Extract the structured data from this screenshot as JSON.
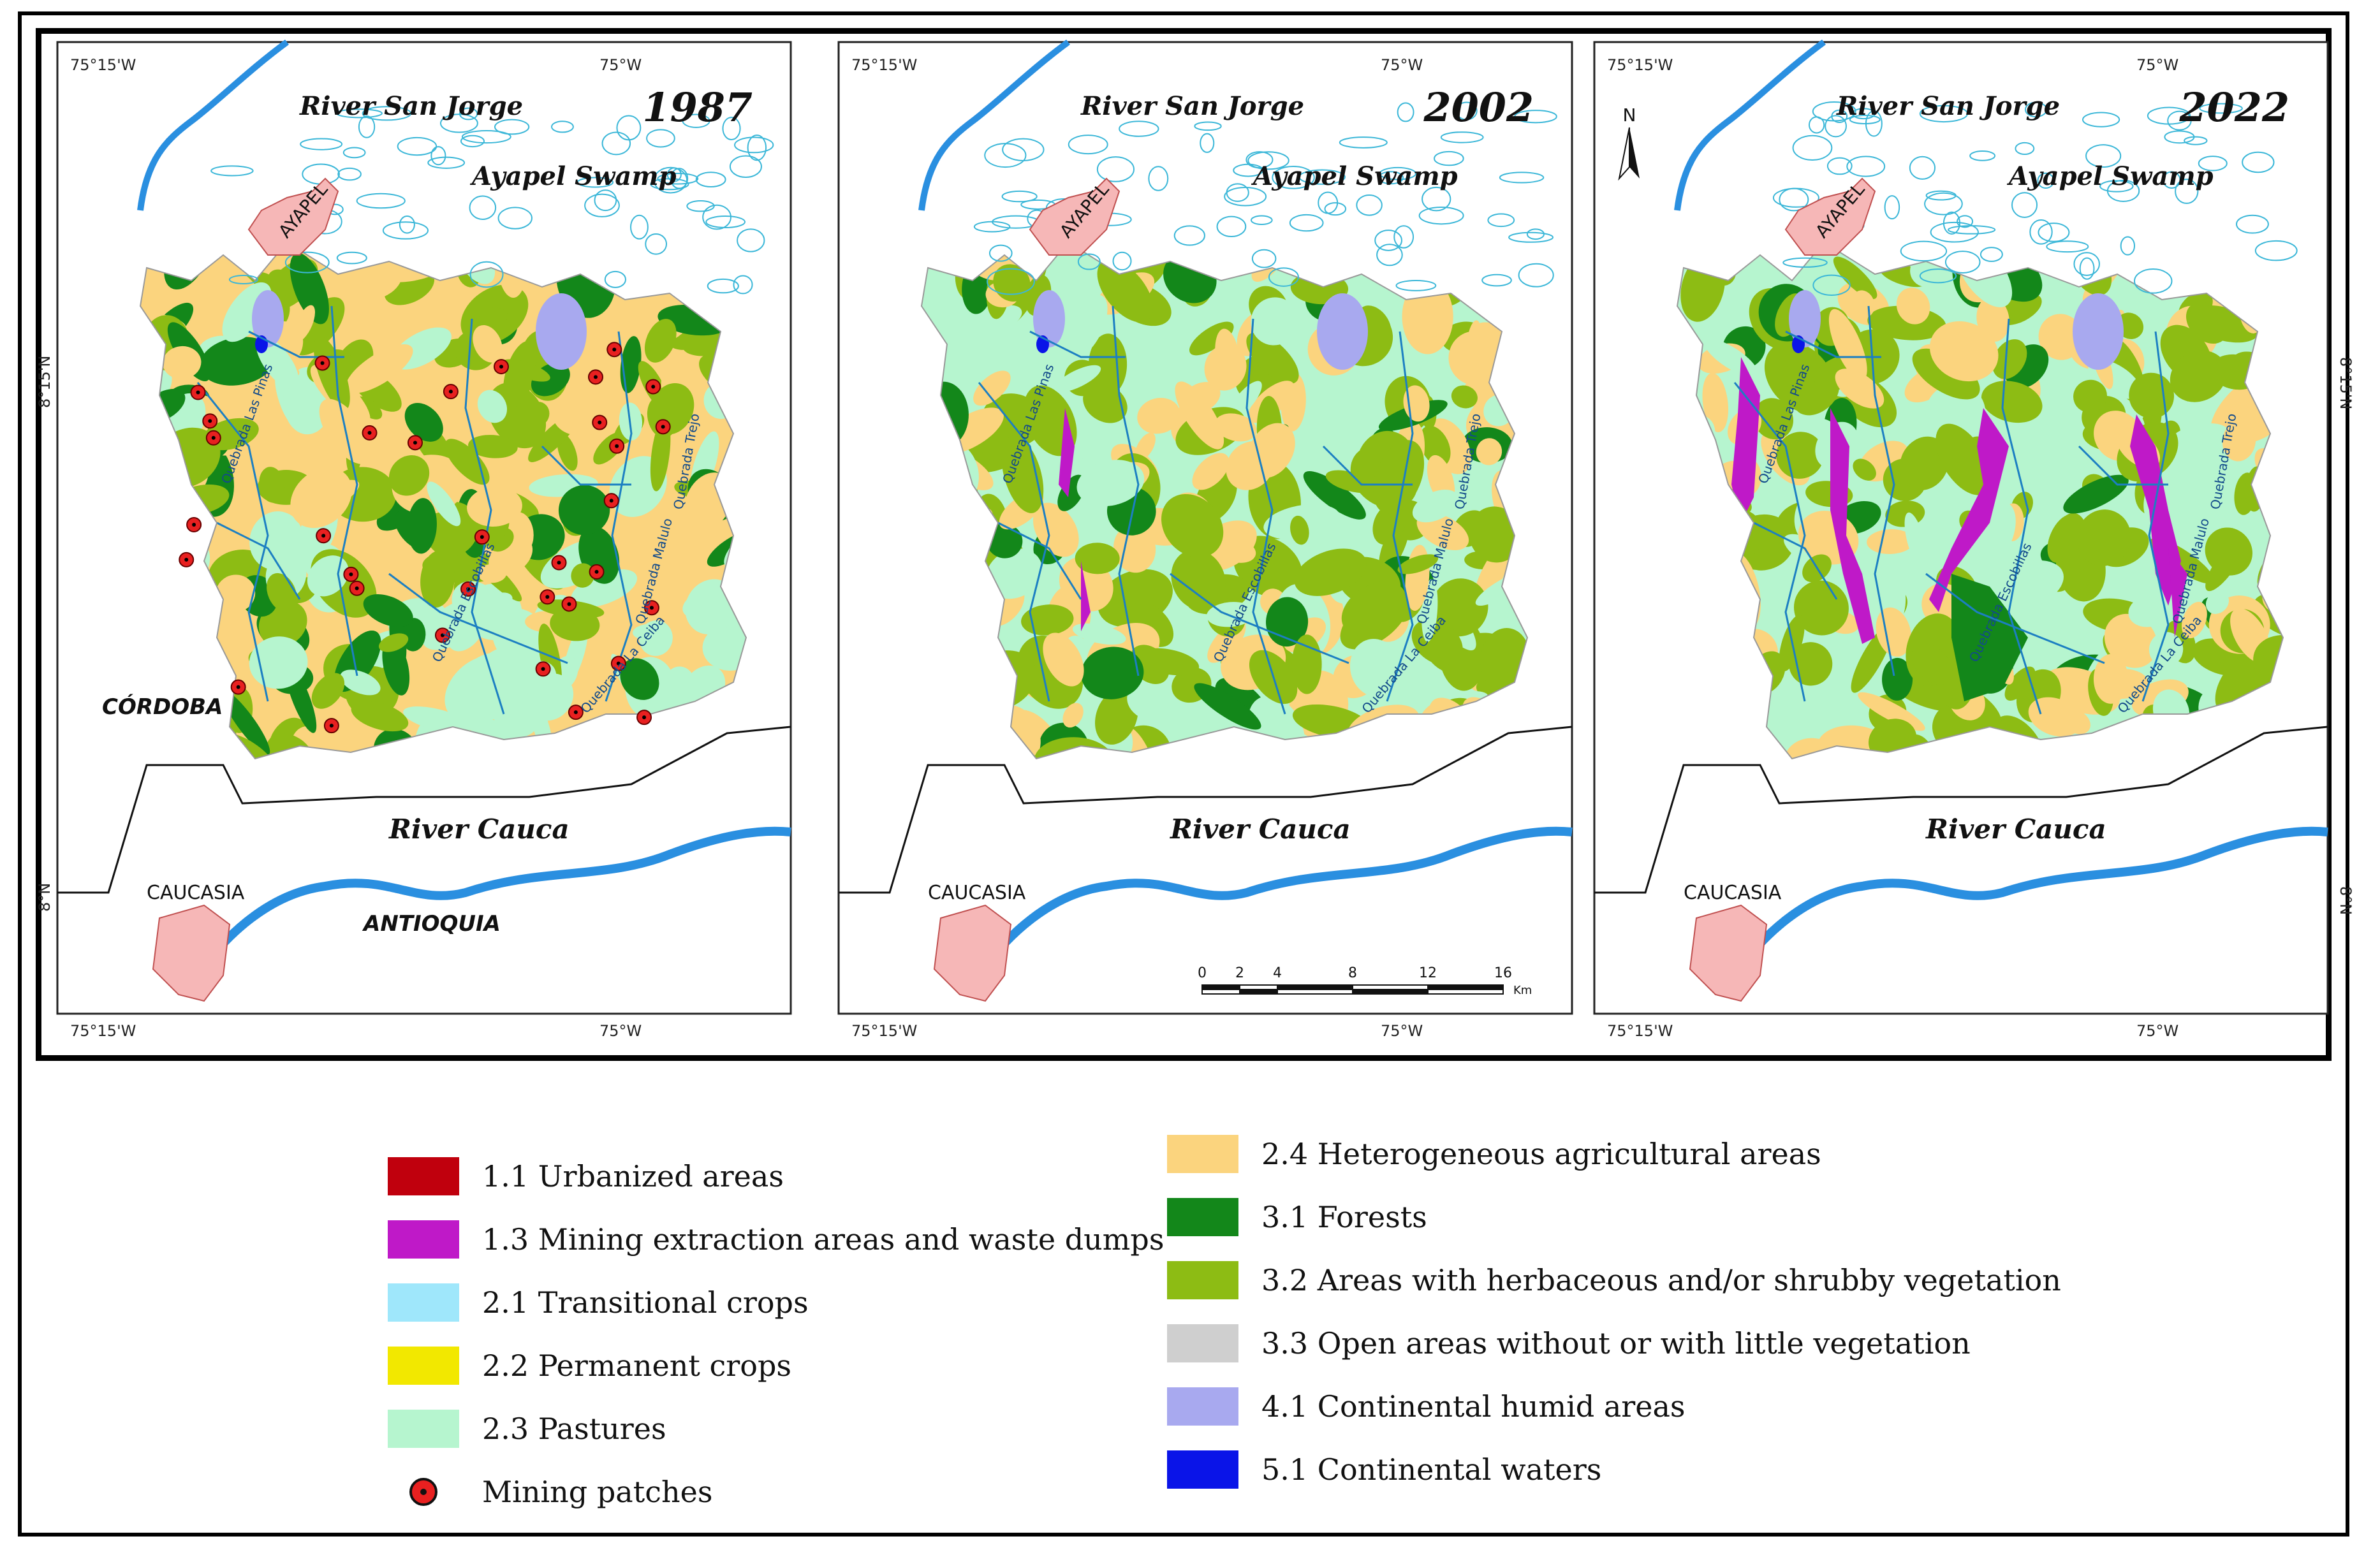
{
  "maps": [
    {
      "year": "1987",
      "labels": {
        "river_north": "River  San Jorge",
        "swamp": "Ayapel Swamp",
        "river_south": "River  Cauca",
        "town_north": "AYAPEL",
        "town_south": "CAUCASIA",
        "dept_west": "CÓRDOBA",
        "dept_south": "ANTIOQUIA",
        "q1": "Quebrada Las Pinas",
        "q2": "Quebrada Escobillas",
        "q3": "Quebrada La Ceiba",
        "q4": "Quebrada Malulo",
        "q5": "Quebrada Trejo"
      }
    },
    {
      "year": "2002",
      "labels": {
        "river_north": "River  San Jorge",
        "swamp": "Ayapel Swamp",
        "river_south": "River  Cauca",
        "town_north": "AYAPEL",
        "town_south": "CAUCASIA",
        "q1": "Quebrada Las Pinas",
        "q2": "Quebrada Escobillas",
        "q3": "Quebrada La Ceiba",
        "q4": "Quebrada Malulo",
        "q5": "Quebrada Trejo"
      }
    },
    {
      "year": "2022",
      "labels": {
        "river_north": "River  San Jorge",
        "swamp": "Ayapel Swamp",
        "river_south": "River  Cauca",
        "town_north": "AYAPEL",
        "town_south": "CAUCASIA",
        "north_arrow": "N",
        "q1": "Quebrada Las Pinas",
        "q2": "Quebrada Escobillas",
        "q3": "Quebrada La Ceiba",
        "q4": "Quebrada Malulo",
        "q5": "Quebrada Trejo"
      }
    }
  ],
  "graticule": {
    "lon_west": "75°15'W",
    "lon_east": "75°W",
    "lat_north": "8°15'N",
    "lat_south": "8°N"
  },
  "scale_bar": {
    "ticks": [
      "0",
      "2",
      "4",
      "8",
      "12",
      "16"
    ],
    "unit": "Km"
  },
  "legend": {
    "left": [
      {
        "label": "1.1 Urbanized areas",
        "color": "#c0000d"
      },
      {
        "label": "1.3 Mining extraction areas and waste dumps",
        "color": "#bf19c8"
      },
      {
        "label": "2.1 Transitional crops",
        "color": "#9fe7fb"
      },
      {
        "label": "2.2 Permanent crops",
        "color": "#f2e800"
      },
      {
        "label": "2.3 Pastures",
        "color": "#b6f5cf"
      },
      {
        "label": "Mining patches",
        "color": "#e82020"
      }
    ],
    "right": [
      {
        "label": "2.4 Heterogeneous agricultural areas",
        "color": "#fbd47e"
      },
      {
        "label": "3.1 Forests",
        "color": "#13871a"
      },
      {
        "label": "3.2 Areas with herbaceous and/or shrubby vegetation",
        "color": "#8dbc14"
      },
      {
        "label": "3.3 Open areas without or with little vegetation",
        "color": "#cfcfcf"
      },
      {
        "label": "4.1 Continental humid areas",
        "color": "#a8a9ef"
      },
      {
        "label": "5.1 Continental waters",
        "color": "#0a14e8"
      }
    ]
  }
}
